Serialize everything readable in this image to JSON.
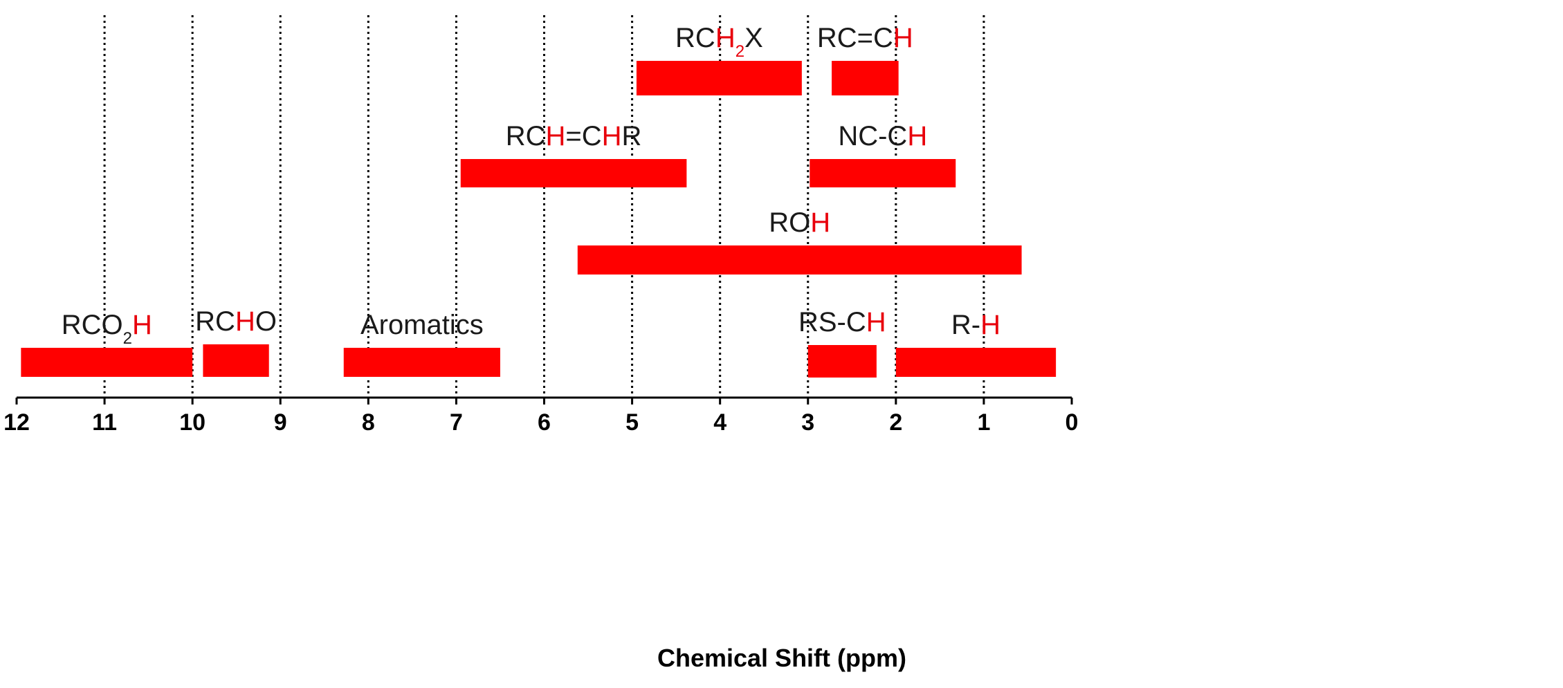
{
  "chart_data": {
    "type": "bar",
    "orientation": "horizontal-range",
    "xlabel": "Chemical Shift (ppm)",
    "x_reversed": true,
    "xlim": [
      12,
      0
    ],
    "ticks": [
      "12",
      "11",
      "10",
      "9",
      "8",
      "7",
      "6",
      "5",
      "4",
      "3",
      "2",
      "1",
      "0"
    ],
    "grid": "vertical dotted lines at each integer ppm",
    "bar_color": "#ff0000",
    "highlight_color": "#e8000b",
    "text_color": "#1a1a1a",
    "ranges": [
      {
        "row": 1,
        "parts": [
          {
            "t": "RC"
          },
          {
            "t": "H",
            "hl": true
          },
          {
            "t": "2",
            "sub": true,
            "hl": true
          },
          {
            "t": "X"
          }
        ],
        "start": 4.95,
        "end": 3.07
      },
      {
        "row": 1,
        "parts": [
          {
            "t": "RC=C"
          },
          {
            "t": "H",
            "hl": true
          }
        ],
        "start": 2.73,
        "end": 1.97
      },
      {
        "row": 2,
        "parts": [
          {
            "t": "RC"
          },
          {
            "t": "H",
            "hl": true
          },
          {
            "t": "=C"
          },
          {
            "t": "H",
            "hl": true
          },
          {
            "t": "R"
          }
        ],
        "start": 6.95,
        "end": 4.38
      },
      {
        "row": 2,
        "parts": [
          {
            "t": "NC-C"
          },
          {
            "t": "H",
            "hl": true
          }
        ],
        "start": 2.98,
        "end": 1.32
      },
      {
        "row": 3,
        "parts": [
          {
            "t": "RO"
          },
          {
            "t": "H",
            "hl": true
          }
        ],
        "start": 5.62,
        "end": 0.57
      },
      {
        "row": 4,
        "parts": [
          {
            "t": "RCO"
          },
          {
            "t": "2",
            "sub": true
          },
          {
            "t": "H",
            "hl": true
          }
        ],
        "start": 11.95,
        "end": 10.0
      },
      {
        "row": 4,
        "parts": [
          {
            "t": "RC"
          },
          {
            "t": "H",
            "hl": true
          },
          {
            "t": "O"
          }
        ],
        "start": 9.88,
        "end": 9.13
      },
      {
        "row": 4,
        "parts": [
          {
            "t": "Aromatics"
          }
        ],
        "start": 8.28,
        "end": 6.5
      },
      {
        "row": 4,
        "parts": [
          {
            "t": "RS-C"
          },
          {
            "t": "H",
            "hl": true
          }
        ],
        "start": 3.0,
        "end": 2.22
      },
      {
        "row": 4,
        "parts": [
          {
            "t": "R-"
          },
          {
            "t": "H",
            "hl": true
          }
        ],
        "start": 2.0,
        "end": 0.18
      }
    ]
  }
}
